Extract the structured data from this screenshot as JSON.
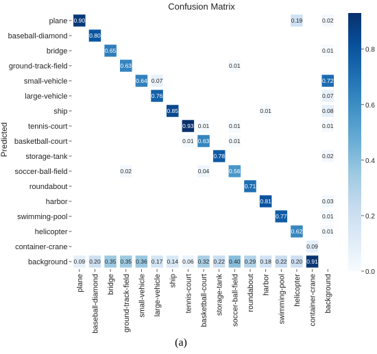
{
  "chart_data": {
    "type": "heatmap",
    "title": "Confusion Matrix",
    "ylabel": "Predicted",
    "xlabel": "",
    "caption": "(a)",
    "row_labels": [
      "plane",
      "baseball-diamond",
      "bridge",
      "ground-track-field",
      "small-vehicle",
      "large-vehicle",
      "ship",
      "tennis-court",
      "basketball-court",
      "storage-tank",
      "soccer-ball-field",
      "roundabout",
      "harbor",
      "swimming-pool",
      "helicopter",
      "container-crane",
      "background"
    ],
    "col_labels": [
      "plane",
      "baseball-diamond",
      "bridge",
      "ground-track-field",
      "small-vehicle",
      "large-vehicle",
      "ship",
      "tennis-court",
      "basketball-court",
      "storage-tank",
      "soccer-ball-field",
      "roundabout",
      "harbor",
      "swimming-pool",
      "helicopter",
      "container-crane",
      "background"
    ],
    "values": [
      [
        0.9,
        null,
        null,
        null,
        null,
        null,
        null,
        null,
        null,
        null,
        null,
        null,
        null,
        null,
        0.19,
        null,
        0.02
      ],
      [
        null,
        0.8,
        null,
        null,
        null,
        null,
        null,
        null,
        null,
        null,
        null,
        null,
        null,
        null,
        null,
        null,
        null
      ],
      [
        null,
        null,
        0.65,
        null,
        null,
        null,
        null,
        null,
        null,
        null,
        null,
        null,
        null,
        null,
        null,
        null,
        0.01
      ],
      [
        null,
        null,
        null,
        0.63,
        null,
        null,
        null,
        null,
        null,
        null,
        0.01,
        null,
        null,
        null,
        null,
        null,
        null
      ],
      [
        null,
        null,
        null,
        null,
        0.64,
        0.07,
        null,
        null,
        null,
        null,
        null,
        null,
        null,
        null,
        null,
        null,
        0.72
      ],
      [
        null,
        null,
        null,
        null,
        null,
        0.76,
        null,
        null,
        null,
        null,
        null,
        null,
        null,
        null,
        null,
        null,
        0.07
      ],
      [
        null,
        null,
        null,
        null,
        null,
        null,
        0.85,
        null,
        null,
        null,
        null,
        null,
        0.01,
        null,
        null,
        null,
        0.08
      ],
      [
        null,
        null,
        null,
        null,
        null,
        null,
        null,
        0.93,
        0.01,
        null,
        0.01,
        null,
        null,
        null,
        null,
        null,
        0.01
      ],
      [
        null,
        null,
        null,
        null,
        null,
        null,
        null,
        0.01,
        0.63,
        null,
        0.01,
        null,
        null,
        null,
        null,
        null,
        null
      ],
      [
        null,
        null,
        null,
        null,
        null,
        null,
        null,
        null,
        null,
        0.78,
        null,
        null,
        null,
        null,
        null,
        null,
        0.02
      ],
      [
        null,
        null,
        null,
        0.02,
        null,
        null,
        null,
        null,
        0.04,
        null,
        0.56,
        null,
        null,
        null,
        null,
        null,
        null
      ],
      [
        null,
        null,
        null,
        null,
        null,
        null,
        null,
        null,
        null,
        null,
        null,
        0.71,
        null,
        null,
        null,
        null,
        null
      ],
      [
        null,
        null,
        null,
        null,
        null,
        null,
        null,
        null,
        null,
        null,
        null,
        null,
        0.81,
        null,
        null,
        null,
        0.03
      ],
      [
        null,
        null,
        null,
        null,
        null,
        null,
        null,
        null,
        null,
        null,
        null,
        null,
        null,
        0.77,
        null,
        null,
        0.01
      ],
      [
        null,
        null,
        null,
        null,
        null,
        null,
        null,
        null,
        null,
        null,
        null,
        null,
        null,
        null,
        0.62,
        null,
        0.01
      ],
      [
        null,
        null,
        null,
        null,
        null,
        null,
        null,
        null,
        null,
        null,
        null,
        null,
        null,
        null,
        null,
        0.09,
        null
      ],
      [
        0.09,
        0.2,
        0.35,
        0.35,
        0.36,
        0.17,
        0.14,
        0.06,
        0.32,
        0.22,
        0.4,
        0.29,
        0.18,
        0.22,
        0.2,
        0.91,
        null
      ]
    ],
    "colorbar": {
      "range": [
        0.0,
        0.93
      ],
      "ticks": [
        0.0,
        0.2,
        0.4,
        0.6,
        0.8
      ],
      "tick_labels": [
        "0.0",
        "0.2",
        "0.4",
        "0.6",
        "0.8"
      ],
      "colormap": "Blues",
      "color_low": "#f7fbff",
      "color_high": "#08306b"
    },
    "grid": false,
    "legend": "colorbar-right"
  }
}
